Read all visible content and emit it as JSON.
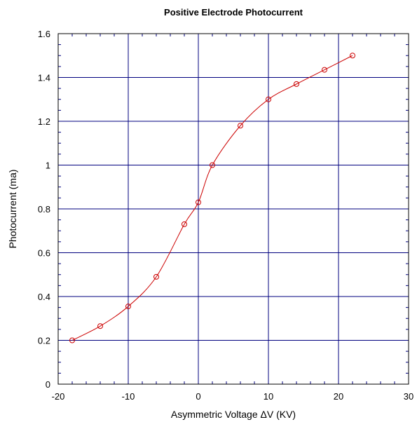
{
  "chart_data": {
    "type": "scatter",
    "title": "Positive Electrode Photocurrent",
    "xlabel": "Asymmetric Voltage ΔV (KV)",
    "ylabel": "Photocurrent (ma)",
    "xlim": [
      -20,
      30
    ],
    "ylim": [
      0,
      1.6
    ],
    "x_ticks": [
      -20,
      -10,
      0,
      10,
      20,
      30
    ],
    "y_ticks": [
      0,
      0.2,
      0.4,
      0.6,
      0.8,
      1,
      1.2,
      1.4,
      1.6
    ],
    "x_tick_labels": [
      "-20",
      "-10",
      "0",
      "10",
      "20",
      "30"
    ],
    "y_tick_labels": [
      "0",
      "0.2",
      "0.4",
      "0.6",
      "0.8",
      "1",
      "1.2",
      "1.4",
      "1.6"
    ],
    "grid": true,
    "grid_color": "#00007f",
    "series": [
      {
        "marker": "open-circle",
        "color": "#cc0000",
        "line": "smooth",
        "x": [
          -18,
          -14,
          -10,
          -6,
          -2,
          0,
          2,
          6,
          10,
          14,
          18,
          22
        ],
        "y": [
          0.2,
          0.265,
          0.355,
          0.49,
          0.73,
          0.83,
          1.0,
          1.18,
          1.3,
          1.37,
          1.435,
          1.5
        ]
      }
    ]
  }
}
